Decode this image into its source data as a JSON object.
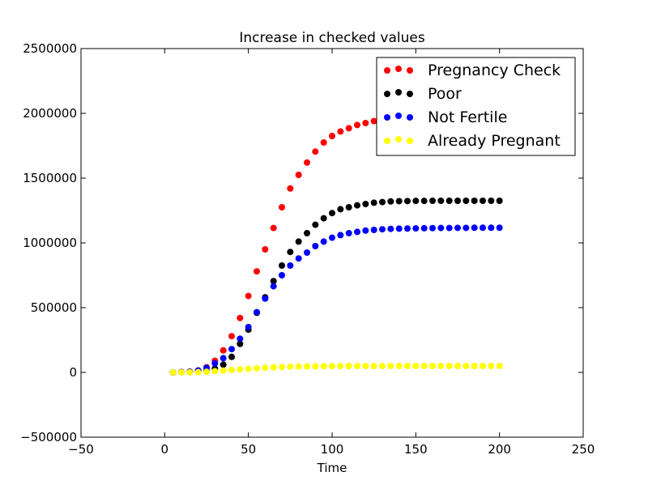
{
  "chart_data": {
    "type": "scatter",
    "title": "Increase in checked values",
    "xlabel": "Time",
    "ylabel": "",
    "xlim": [
      -50,
      250
    ],
    "ylim": [
      -500000,
      2500000
    ],
    "xticks": [
      -50,
      0,
      50,
      100,
      150,
      200,
      250
    ],
    "yticks": [
      -500000,
      0,
      500000,
      1000000,
      1500000,
      2000000,
      2500000
    ],
    "x_tick_labels": [
      "−50",
      "0",
      "50",
      "100",
      "150",
      "200",
      "250"
    ],
    "y_tick_labels": [
      "−500000",
      "0",
      "500000",
      "1000000",
      "1500000",
      "2000000",
      "2500000"
    ],
    "grid": false,
    "legend_position": "top-right",
    "x": [
      5,
      10,
      15,
      20,
      25,
      30,
      35,
      40,
      45,
      50,
      55,
      60,
      65,
      70,
      75,
      80,
      85,
      90,
      95,
      100,
      105,
      110,
      115,
      120,
      125,
      130,
      135,
      140,
      145,
      150,
      155,
      160,
      165,
      170,
      175,
      180,
      185,
      190,
      195,
      200
    ],
    "series": [
      {
        "name": "Pregnancy Check",
        "color": "#ff0000",
        "values": [
          0,
          2000,
          6000,
          15000,
          40000,
          90000,
          170000,
          280000,
          420000,
          590000,
          780000,
          950000,
          1115000,
          1275000,
          1420000,
          1525000,
          1620000,
          1705000,
          1775000,
          1825000,
          1860000,
          1885000,
          1910000,
          1925000,
          1940000,
          1955000,
          1960000,
          1965000,
          1968000,
          1970000,
          1972000,
          1973000,
          1974000,
          1975000,
          1975000,
          1976000,
          1976000,
          1977000,
          1977000,
          1977000
        ]
      },
      {
        "name": "Poor",
        "color": "#000000",
        "values": [
          0,
          1000,
          3000,
          7000,
          15000,
          30000,
          60000,
          120000,
          220000,
          330000,
          460000,
          580000,
          705000,
          825000,
          930000,
          1010000,
          1075000,
          1140000,
          1190000,
          1230000,
          1260000,
          1275000,
          1290000,
          1300000,
          1310000,
          1315000,
          1320000,
          1322000,
          1323000,
          1324000,
          1324000,
          1325000,
          1325000,
          1325000,
          1325000,
          1325000,
          1325000,
          1325000,
          1325000,
          1325000
        ]
      },
      {
        "name": "Not Fertile",
        "color": "#0000ff",
        "values": [
          0,
          2000,
          5000,
          15000,
          35000,
          70000,
          110000,
          180000,
          260000,
          350000,
          465000,
          570000,
          665000,
          750000,
          825000,
          880000,
          925000,
          975000,
          1010000,
          1040000,
          1060000,
          1075000,
          1085000,
          1095000,
          1100000,
          1105000,
          1108000,
          1110000,
          1111000,
          1112000,
          1113000,
          1114000,
          1115000,
          1115000,
          1116000,
          1116000,
          1117000,
          1117000,
          1117000,
          1117000
        ]
      },
      {
        "name": "Already Pregnant",
        "color": "#ffff00",
        "values": [
          0,
          0,
          500,
          2000,
          5000,
          9000,
          14000,
          19000,
          24000,
          28000,
          32000,
          36000,
          39000,
          42000,
          44000,
          45000,
          46000,
          47000,
          48000,
          48500,
          49000,
          49200,
          49400,
          49600,
          49700,
          49800,
          49850,
          49900,
          49920,
          49940,
          49950,
          49960,
          49970,
          49980,
          49990,
          50000,
          50000,
          50000,
          50000,
          50000
        ]
      }
    ]
  }
}
